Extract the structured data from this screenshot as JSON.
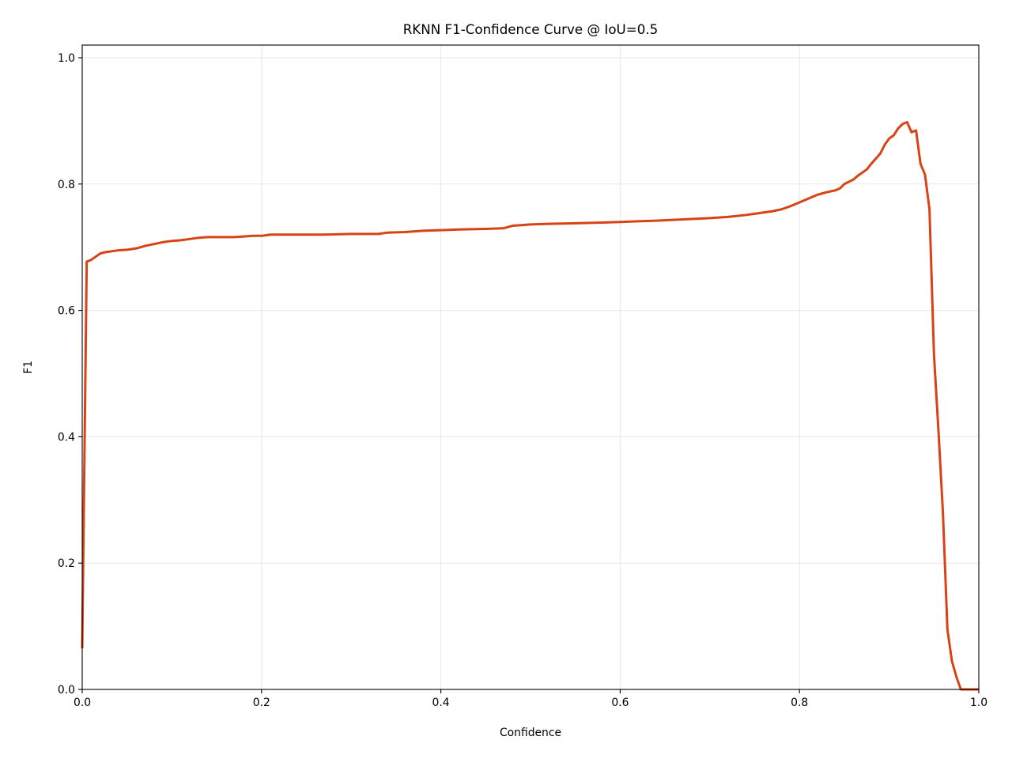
{
  "chart_data": {
    "type": "line",
    "title": "RKNN F1-Confidence Curve @ IoU=0.5",
    "xlabel": "Confidence",
    "ylabel": "F1",
    "xlim": [
      0,
      1
    ],
    "ylim": [
      0,
      1.02
    ],
    "xticks": [
      0.0,
      0.2,
      0.4,
      0.6,
      0.8,
      1.0
    ],
    "xtick_labels": [
      "0.0",
      "0.2",
      "0.4",
      "0.6",
      "0.8",
      "1.0"
    ],
    "yticks": [
      0.0,
      0.2,
      0.4,
      0.6,
      0.8,
      1.0
    ],
    "ytick_labels": [
      "0.0",
      "0.2",
      "0.4",
      "0.6",
      "0.8",
      "1.0"
    ],
    "grid": true,
    "legend": "none",
    "series": [
      {
        "color": "#d84315",
        "x": [
          0.0,
          0.005,
          0.01,
          0.015,
          0.02,
          0.025,
          0.03,
          0.04,
          0.05,
          0.06,
          0.07,
          0.08,
          0.09,
          0.1,
          0.11,
          0.12,
          0.13,
          0.14,
          0.15,
          0.17,
          0.18,
          0.19,
          0.2,
          0.21,
          0.22,
          0.25,
          0.27,
          0.3,
          0.33,
          0.34,
          0.36,
          0.38,
          0.4,
          0.42,
          0.45,
          0.47,
          0.48,
          0.49,
          0.5,
          0.52,
          0.55,
          0.58,
          0.6,
          0.62,
          0.64,
          0.67,
          0.7,
          0.72,
          0.74,
          0.75,
          0.77,
          0.78,
          0.79,
          0.8,
          0.81,
          0.82,
          0.83,
          0.84,
          0.845,
          0.85,
          0.86,
          0.865,
          0.87,
          0.875,
          0.88,
          0.885,
          0.89,
          0.895,
          0.9,
          0.905,
          0.91,
          0.915,
          0.92,
          0.925,
          0.93,
          0.935,
          0.94,
          0.945,
          0.95,
          0.955,
          0.96,
          0.965,
          0.97,
          0.975,
          0.98,
          0.99,
          1.0
        ],
        "y": [
          0.065,
          0.677,
          0.68,
          0.685,
          0.69,
          0.692,
          0.693,
          0.695,
          0.696,
          0.698,
          0.702,
          0.705,
          0.708,
          0.71,
          0.711,
          0.713,
          0.715,
          0.716,
          0.716,
          0.716,
          0.717,
          0.718,
          0.718,
          0.72,
          0.72,
          0.72,
          0.72,
          0.721,
          0.721,
          0.723,
          0.724,
          0.726,
          0.727,
          0.728,
          0.729,
          0.73,
          0.734,
          0.735,
          0.736,
          0.737,
          0.738,
          0.739,
          0.74,
          0.741,
          0.742,
          0.744,
          0.746,
          0.748,
          0.751,
          0.753,
          0.757,
          0.76,
          0.765,
          0.771,
          0.777,
          0.783,
          0.787,
          0.79,
          0.793,
          0.8,
          0.807,
          0.813,
          0.818,
          0.823,
          0.832,
          0.84,
          0.848,
          0.862,
          0.872,
          0.877,
          0.888,
          0.895,
          0.898,
          0.882,
          0.885,
          0.832,
          0.815,
          0.76,
          0.53,
          0.41,
          0.28,
          0.095,
          0.045,
          0.02,
          0.0,
          0.0,
          0.0
        ]
      }
    ]
  }
}
